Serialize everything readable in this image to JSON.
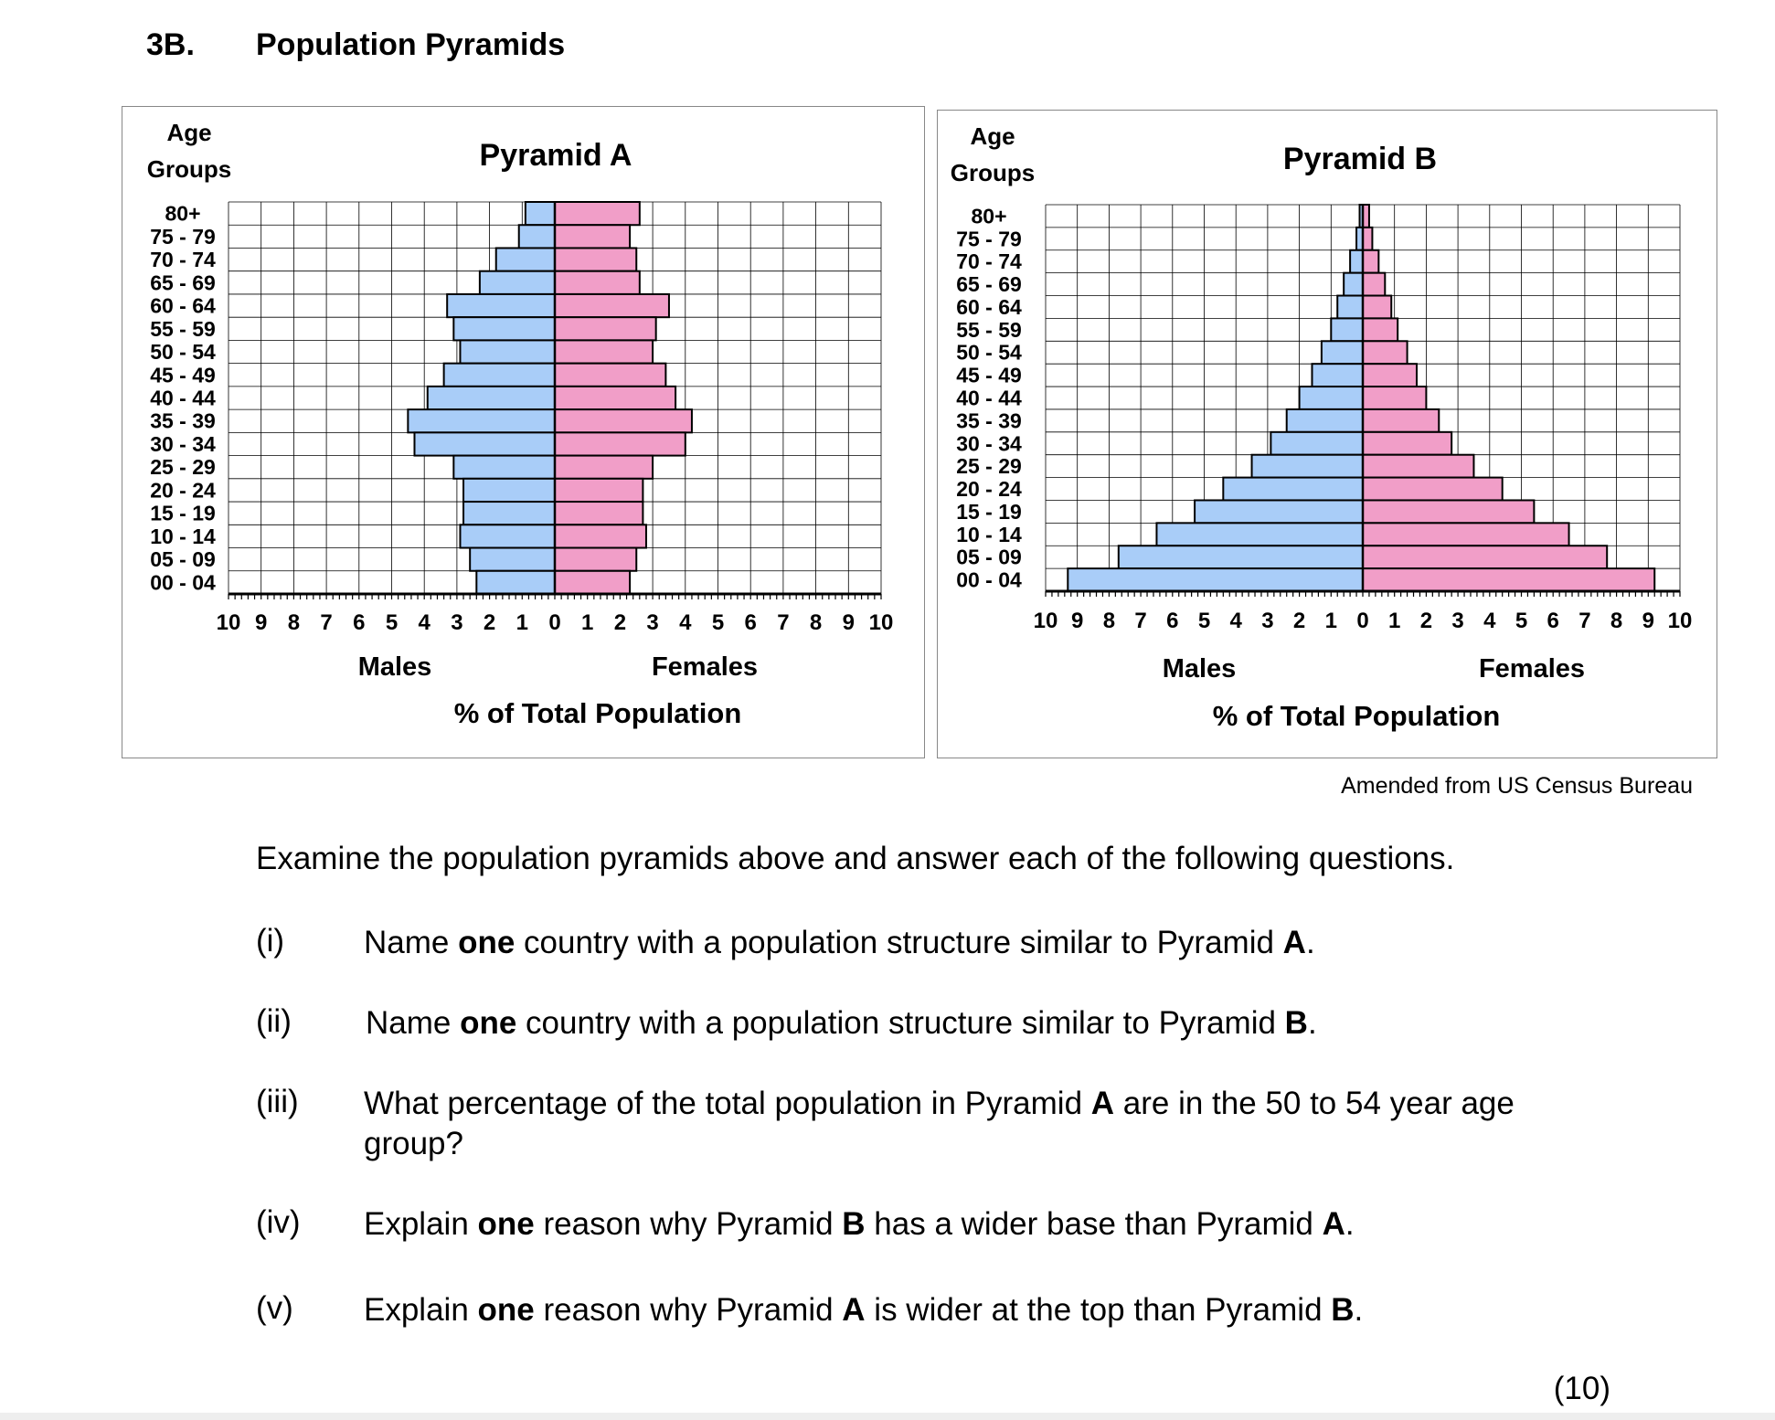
{
  "section": {
    "number": "3B.",
    "title": "Population Pyramids"
  },
  "colors": {
    "male": "#a9cdf8",
    "female": "#f19ec8",
    "grid": "#000000",
    "border": "#000000"
  },
  "chart_data": [
    {
      "type": "bar",
      "orientation": "horizontal-population-pyramid",
      "title": "Pyramid A",
      "age_header": [
        "Age",
        "Groups"
      ],
      "categories": [
        "80+",
        "75 - 79",
        "70 - 74",
        "65 - 69",
        "60 - 64",
        "55 - 59",
        "50 - 54",
        "45 - 49",
        "40 - 44",
        "35 - 39",
        "30 - 34",
        "25 - 29",
        "20 - 24",
        "15 - 19",
        "10 - 14",
        "05 - 09",
        "00 - 04"
      ],
      "series": [
        {
          "name": "Males",
          "values": [
            0.9,
            1.1,
            1.8,
            2.3,
            3.3,
            3.1,
            2.9,
            3.4,
            3.9,
            4.5,
            4.3,
            3.1,
            2.8,
            2.8,
            2.9,
            2.6,
            2.4
          ]
        },
        {
          "name": "Females",
          "values": [
            2.6,
            2.3,
            2.5,
            2.6,
            3.5,
            3.1,
            3.0,
            3.4,
            3.7,
            4.2,
            4.0,
            3.0,
            2.7,
            2.7,
            2.8,
            2.5,
            2.3
          ]
        }
      ],
      "xlabel": "% of Total Population",
      "side_labels": [
        "Males",
        "Females"
      ],
      "x_ticks": [
        "10",
        "9",
        "8",
        "7",
        "6",
        "5",
        "4",
        "3",
        "2",
        "1",
        "0",
        "1",
        "2",
        "3",
        "4",
        "5",
        "6",
        "7",
        "8",
        "9",
        "10"
      ],
      "xlim": [
        -10,
        10
      ],
      "grid": true
    },
    {
      "type": "bar",
      "orientation": "horizontal-population-pyramid",
      "title": "Pyramid B",
      "age_header": [
        "Age",
        "Groups"
      ],
      "categories": [
        "80+",
        "75 - 79",
        "70 - 74",
        "65 - 69",
        "60 - 64",
        "55 - 59",
        "50 - 54",
        "45 - 49",
        "40 - 44",
        "35 - 39",
        "30 - 34",
        "25 - 29",
        "20 - 24",
        "15 - 19",
        "10 - 14",
        "05 - 09",
        "00 - 04"
      ],
      "series": [
        {
          "name": "Males",
          "values": [
            0.1,
            0.2,
            0.4,
            0.6,
            0.8,
            1.0,
            1.3,
            1.6,
            2.0,
            2.4,
            2.9,
            3.5,
            4.4,
            5.3,
            6.5,
            7.7,
            9.3
          ]
        },
        {
          "name": "Females",
          "values": [
            0.2,
            0.3,
            0.5,
            0.7,
            0.9,
            1.1,
            1.4,
            1.7,
            2.0,
            2.4,
            2.8,
            3.5,
            4.4,
            5.4,
            6.5,
            7.7,
            9.2
          ]
        }
      ],
      "xlabel": "% of Total Population",
      "side_labels": [
        "Males",
        "Females"
      ],
      "x_ticks": [
        "10",
        "9",
        "8",
        "7",
        "6",
        "5",
        "4",
        "3",
        "2",
        "1",
        "0",
        "1",
        "2",
        "3",
        "4",
        "5",
        "6",
        "7",
        "8",
        "9",
        "10"
      ],
      "xlim": [
        -10,
        10
      ],
      "grid": true
    }
  ],
  "source": "Amended from US Census Bureau",
  "instruction": "Examine the population pyramids above and answer each of the following questions.",
  "questions": [
    {
      "number": "(i)",
      "parts": [
        [
          "Name ",
          false
        ],
        [
          "one",
          true
        ],
        [
          " country with a population structure similar to Pyramid ",
          false
        ],
        [
          "A",
          true
        ],
        [
          ".",
          false
        ]
      ]
    },
    {
      "number": "(ii)",
      "parts": [
        [
          "Name ",
          false
        ],
        [
          "one",
          true
        ],
        [
          " country with a population structure similar to Pyramid ",
          false
        ],
        [
          "B",
          true
        ],
        [
          ".",
          false
        ]
      ]
    },
    {
      "number": "(iii)",
      "parts": [
        [
          "What percentage of the total population in Pyramid ",
          false
        ],
        [
          "A",
          true
        ],
        [
          " are in the 50 to 54 year age group?",
          false
        ]
      ]
    },
    {
      "number": "(iv)",
      "parts": [
        [
          "Explain ",
          false
        ],
        [
          "one",
          true
        ],
        [
          " reason why Pyramid ",
          false
        ],
        [
          "B",
          true
        ],
        [
          " has a wider base than Pyramid ",
          false
        ],
        [
          "A",
          true
        ],
        [
          ".",
          false
        ]
      ]
    },
    {
      "number": "(v)",
      "parts": [
        [
          "Explain ",
          false
        ],
        [
          "one",
          true
        ],
        [
          " reason why Pyramid ",
          false
        ],
        [
          "A",
          true
        ],
        [
          " is wider at the top than Pyramid ",
          false
        ],
        [
          "B",
          true
        ],
        [
          ".",
          false
        ]
      ]
    }
  ],
  "marks": "(10)"
}
